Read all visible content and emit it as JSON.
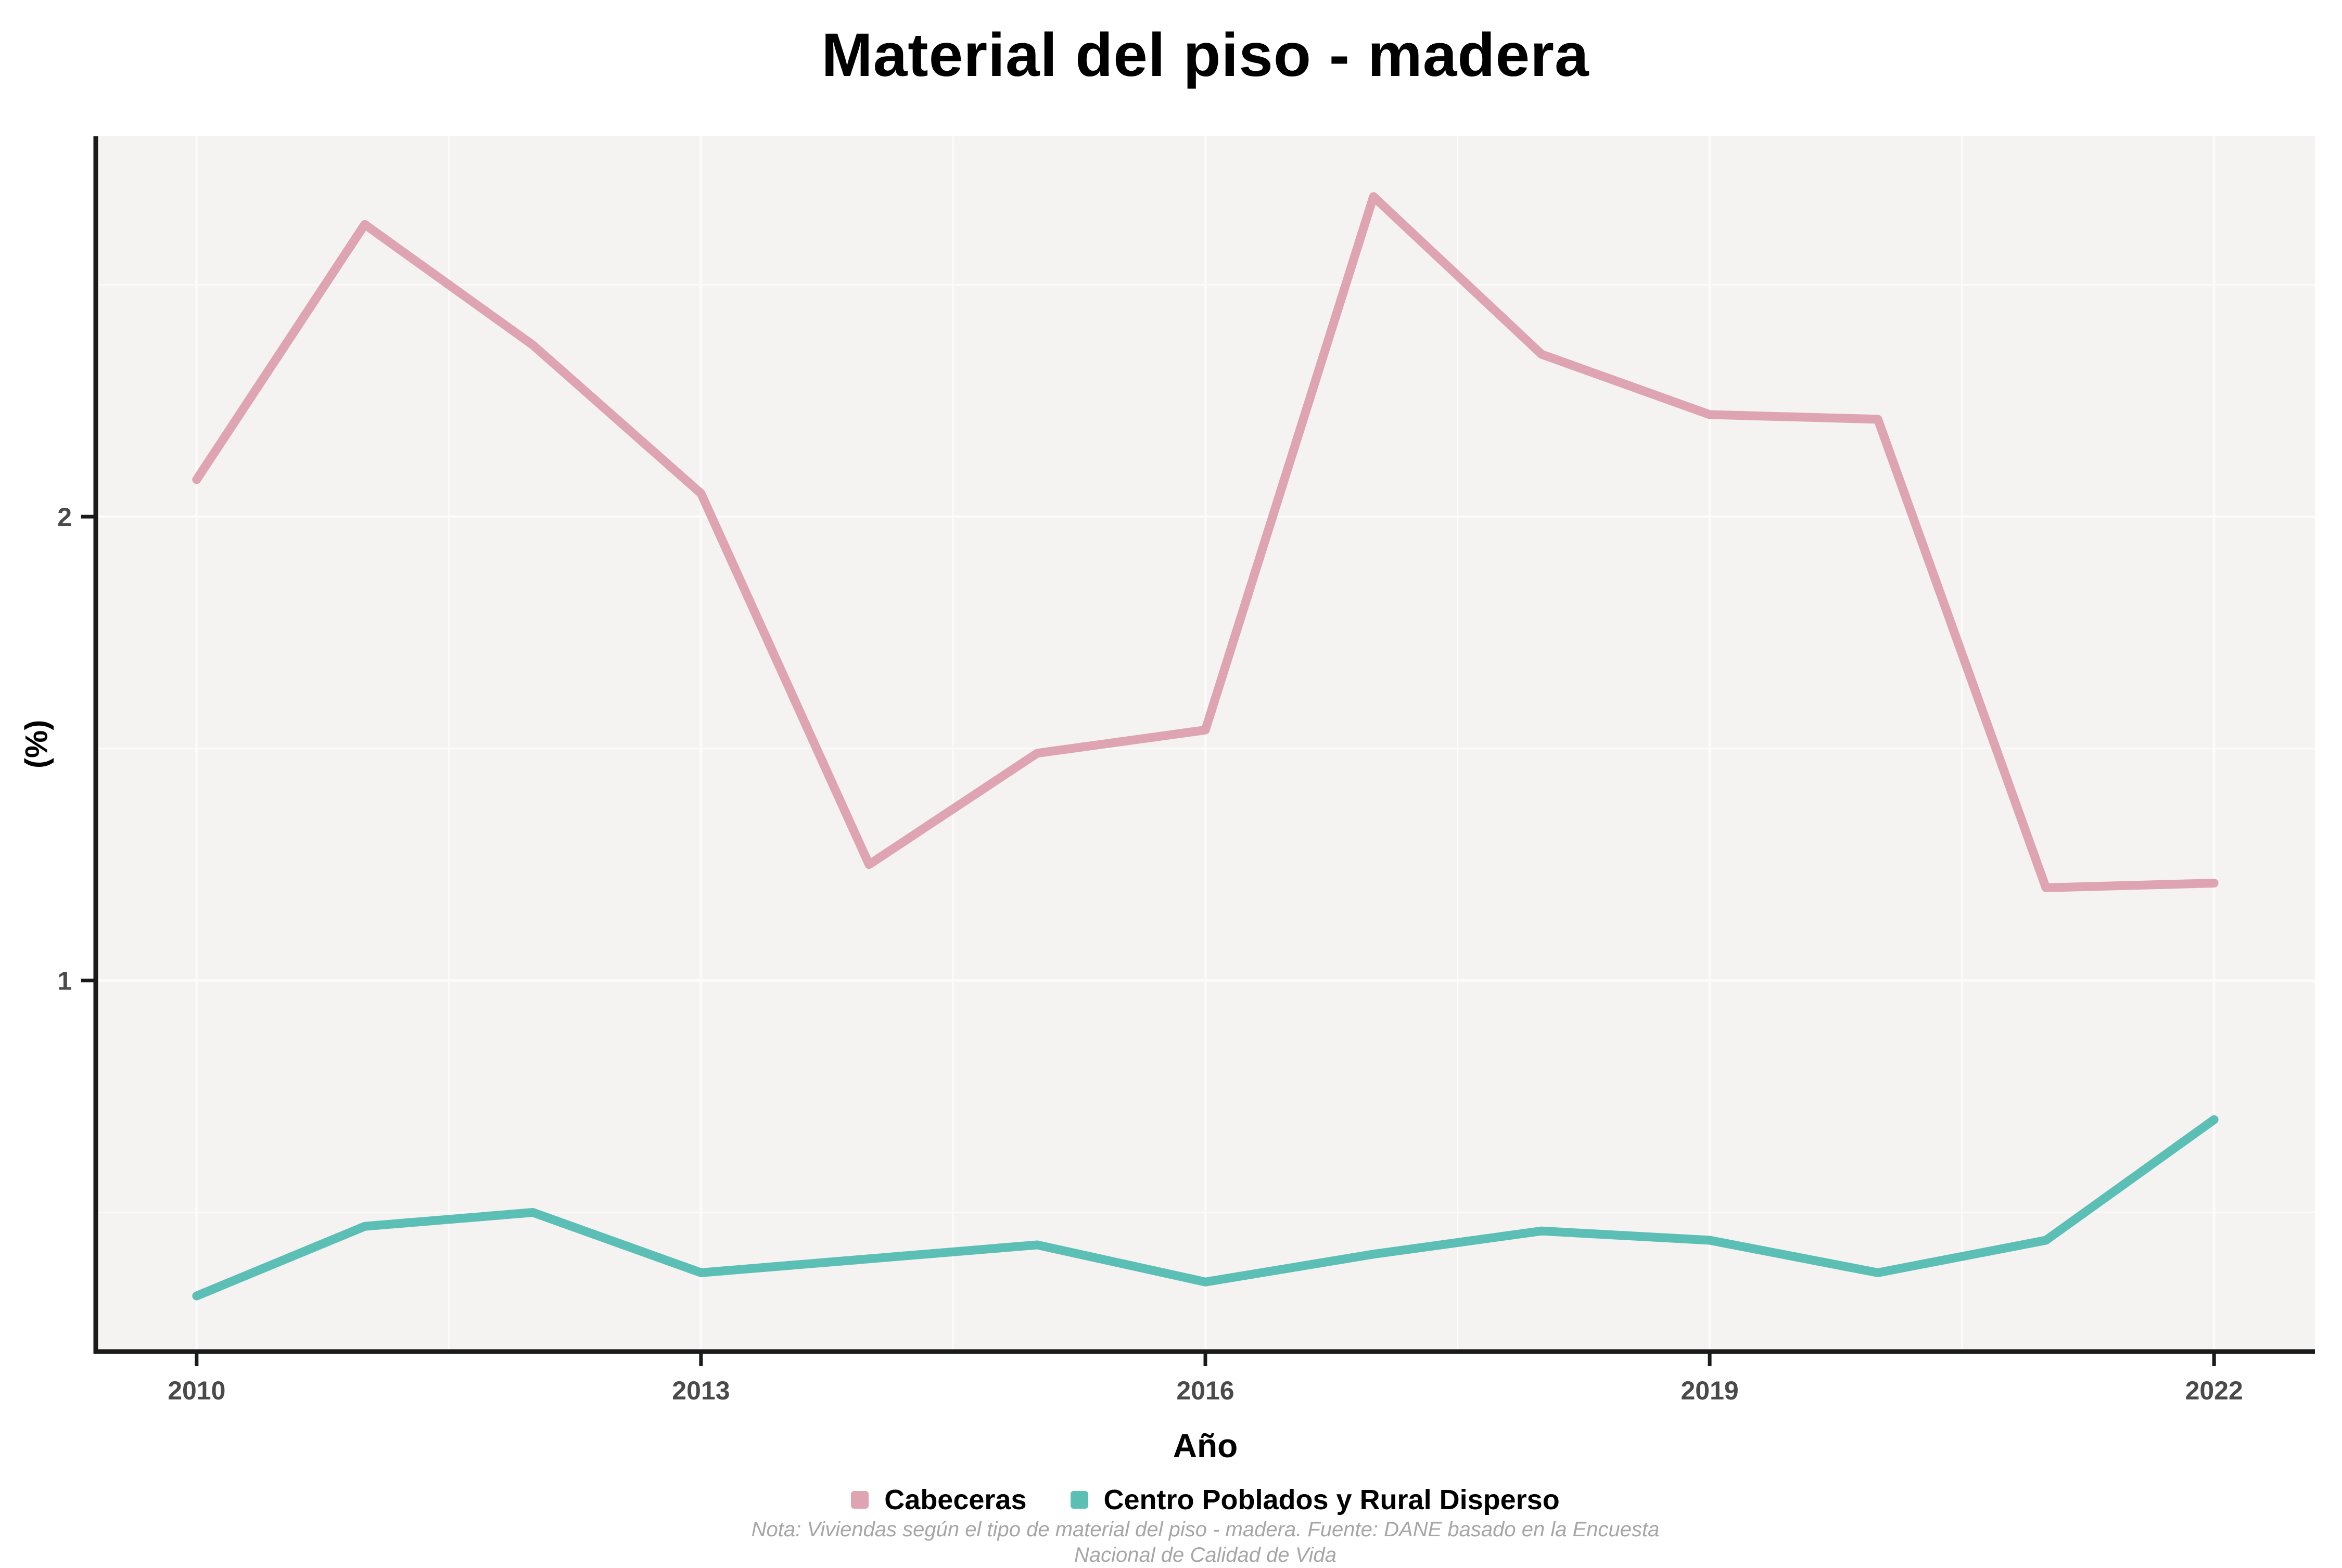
{
  "page": {
    "title": "Material del piso - madera"
  },
  "chart_data": {
    "type": "line",
    "title": "Material del piso - madera",
    "xlabel": "Año",
    "ylabel": "(%)",
    "x": [
      2010,
      2011,
      2012,
      2013,
      2014,
      2015,
      2016,
      2017,
      2018,
      2019,
      2020,
      2021,
      2022
    ],
    "series": [
      {
        "name": "Cabeceras",
        "color": "#DEA4B2",
        "values": [
          2.08,
          2.63,
          2.37,
          2.05,
          1.25,
          1.49,
          1.54,
          2.69,
          2.35,
          2.22,
          2.21,
          1.2,
          1.21
        ]
      },
      {
        "name": "Centro Poblados y Rural Disperso",
        "color": "#5CBFB5",
        "values": [
          0.32,
          0.47,
          0.5,
          0.37,
          0.4,
          0.43,
          0.35,
          0.41,
          0.46,
          0.44,
          0.37,
          0.44,
          0.7
        ]
      }
    ],
    "x_ticks": [
      2010,
      2013,
      2016,
      2019,
      2022
    ],
    "y_ticks": [
      1,
      2
    ],
    "xlim": [
      2009.4,
      2022.6
    ],
    "ylim": [
      0.2,
      2.82
    ],
    "grid": "light-major-and-minor",
    "legend_position": "bottom",
    "panel_background": "#f4f3f2",
    "grid_color": "#fbfbfb",
    "axis_color": "#1a1a1a",
    "tick_label_color": "#4a4a4a",
    "caption": "Nota: Viviendas según el tipo de material del piso - madera. Fuente: DANE basado en la Encuesta Nacional de Calidad de Vida"
  },
  "legend": {
    "items": [
      {
        "label": "Cabeceras",
        "color": "#DEA4B2"
      },
      {
        "label": "Centro Poblados y Rural Disperso",
        "color": "#5CBFB5"
      }
    ]
  },
  "caption": {
    "line1": "Nota: Viviendas según el tipo de material del piso - madera. Fuente: DANE basado en la Encuesta",
    "line2": "Nacional de Calidad de Vida"
  }
}
